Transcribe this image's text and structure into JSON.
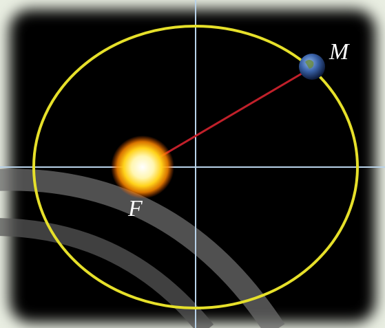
{
  "labels": {
    "planet": "M",
    "focus": "F"
  }
}
